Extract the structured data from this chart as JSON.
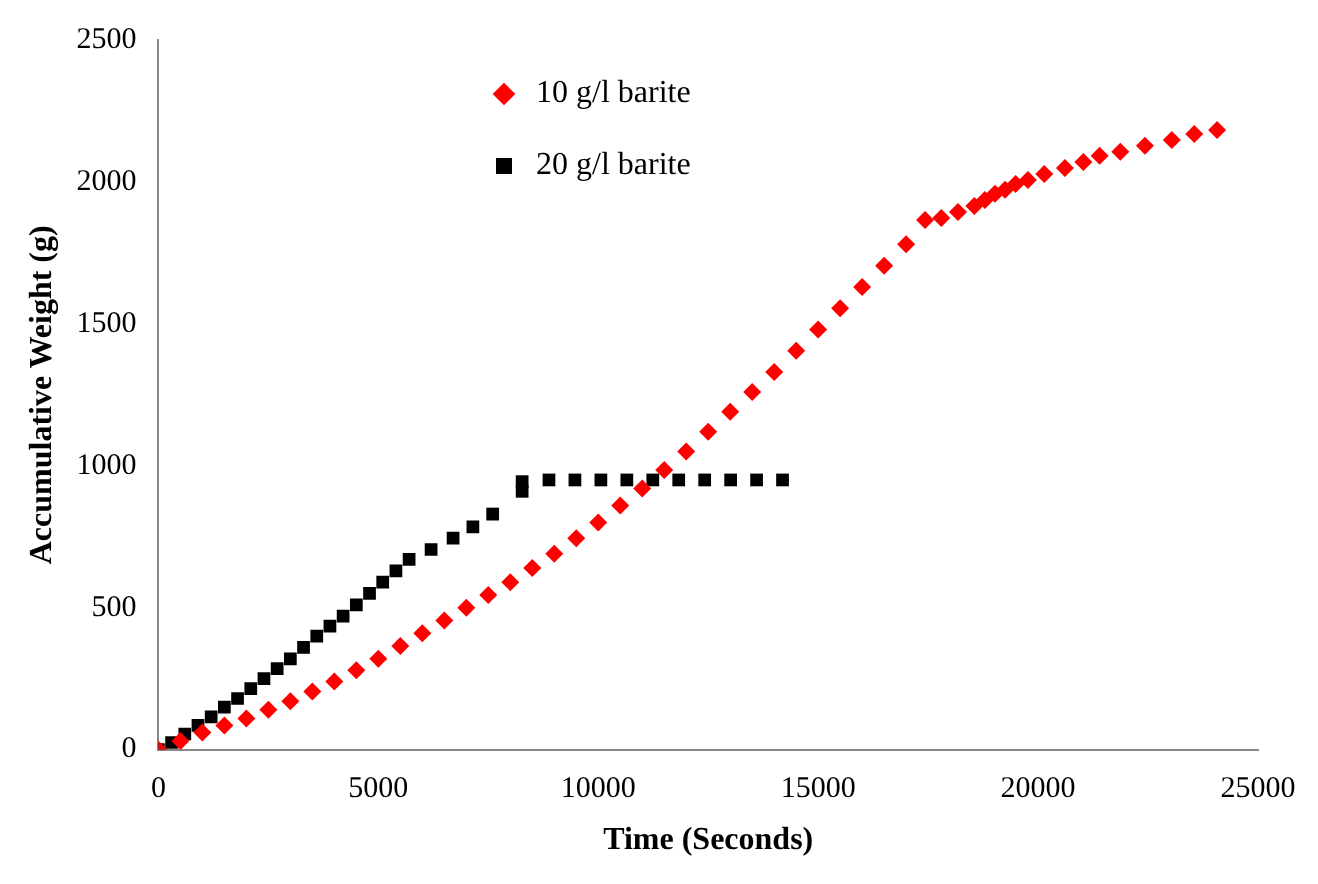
{
  "chart_data": {
    "type": "scatter",
    "xlabel": "Time (Seconds)",
    "ylabel": "Accumulative Weight (g)",
    "xlim": [
      0,
      25000
    ],
    "xticks": [
      0,
      5000,
      10000,
      15000,
      20000,
      25000
    ],
    "ylim": [
      0,
      2500
    ],
    "yticks": [
      0,
      500,
      1000,
      1500,
      2000,
      2500
    ],
    "grid": false,
    "legend": "top left",
    "series": [
      {
        "name": "10 g/l barite",
        "color": "#ff0000",
        "marker": "diamond",
        "x": [
          0,
          500,
          1000,
          1500,
          2000,
          2500,
          3000,
          3500,
          4000,
          4500,
          5000,
          5500,
          6000,
          6500,
          7000,
          7500,
          8000,
          8500,
          9000,
          9500,
          10000,
          10500,
          11000,
          11500,
          12000,
          12500,
          13000,
          13500,
          14000,
          14500,
          15000,
          15500,
          16000,
          16500,
          17000,
          17430,
          17800,
          18180,
          18550,
          18790,
          19020,
          19250,
          19490,
          19770,
          20140,
          20610,
          21030,
          21400,
          21870,
          22430,
          23040,
          23550,
          24070
        ],
        "values": [
          0,
          30,
          60,
          85,
          110,
          140,
          170,
          205,
          240,
          280,
          320,
          365,
          410,
          455,
          500,
          545,
          590,
          640,
          690,
          745,
          800,
          860,
          920,
          985,
          1050,
          1120,
          1190,
          1260,
          1330,
          1405,
          1480,
          1555,
          1630,
          1705,
          1780,
          1866,
          1873,
          1894,
          1915,
          1936,
          1958,
          1972,
          1993,
          2007,
          2028,
          2049,
          2070,
          2092,
          2106,
          2127,
          2148,
          2169,
          2183
        ]
      },
      {
        "name": "20 g/l barite",
        "color": "#000000",
        "marker": "square",
        "x": [
          0,
          300,
          600,
          900,
          1200,
          1500,
          1800,
          2100,
          2400,
          2700,
          3000,
          3300,
          3600,
          3900,
          4200,
          4500,
          4800,
          5100,
          5400,
          5700,
          6200,
          6700,
          7150,
          7600,
          8270,
          8270,
          8880,
          9470,
          10060,
          10650,
          11240,
          11830,
          12420,
          13010,
          13600,
          14190
        ],
        "values": [
          0,
          25,
          55,
          85,
          115,
          150,
          180,
          215,
          250,
          285,
          320,
          360,
          400,
          435,
          470,
          510,
          550,
          590,
          630,
          670,
          705,
          745,
          785,
          830,
          910,
          944,
          950,
          950,
          950,
          950,
          950,
          950,
          950,
          950,
          950,
          950
        ]
      }
    ]
  }
}
